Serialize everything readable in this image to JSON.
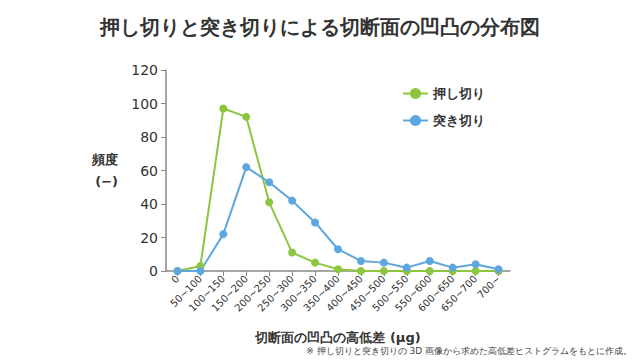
{
  "chart_data": {
    "type": "line",
    "title": "押し切りと突き切りによる切断面の凹凸の分布図",
    "x_label": "切断面の凹凸の高低差 (μg)",
    "y_label": "頻度\n(−)",
    "annotations": [
      "※ 押し切りと突き切りの 3D 画像から求めた高低差ヒストグラムをもとに作成。"
    ],
    "categories": [
      "0",
      "50~100",
      "100~150",
      "150~200",
      "200~250",
      "250~300",
      "300~350",
      "350~400",
      "400~450",
      "450~500",
      "500~550",
      "550~600",
      "600~650",
      "650~700",
      "700~"
    ],
    "series": [
      {
        "name": "押し切り",
        "color": "#8cc63e",
        "marker": "circle",
        "line_style": "solid",
        "values": [
          0,
          3,
          97,
          92,
          41,
          11,
          5,
          1,
          0,
          0,
          0,
          0,
          0,
          0,
          0
        ]
      },
      {
        "name": "突き切り",
        "color": "#5ea6de",
        "marker": "circle",
        "line_style": "solid",
        "values": [
          0,
          0,
          22,
          62,
          53,
          42,
          29,
          13,
          6,
          5,
          2,
          6,
          2,
          4,
          1
        ]
      }
    ],
    "ylim": [
      0,
      120
    ],
    "yticks": [
      0,
      20,
      40,
      60,
      80,
      100,
      120
    ],
    "grid": false,
    "legend": "upper right"
  }
}
